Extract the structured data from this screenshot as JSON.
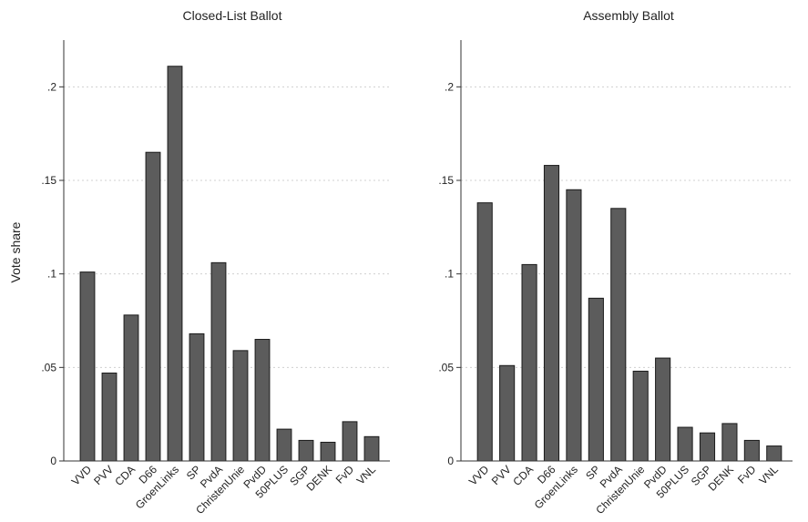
{
  "y_axis_label": "Vote share",
  "chart_data": [
    {
      "type": "bar",
      "title": "Closed-List Ballot",
      "xlabel": "",
      "ylabel": "Vote share",
      "ylim": [
        0,
        0.225
      ],
      "yticks": [
        0,
        0.05,
        0.1,
        0.15,
        0.2
      ],
      "ytick_labels": [
        "0",
        ".05",
        ".1",
        ".15",
        ".2"
      ],
      "grid": true,
      "categories": [
        "VVD",
        "PVV",
        "CDA",
        "D66",
        "GroenLinks",
        "SP",
        "PvdA",
        "ChristenUnie",
        "PvdD",
        "50PLUS",
        "SGP",
        "DENK",
        "FvD",
        "VNL"
      ],
      "values": [
        0.101,
        0.047,
        0.078,
        0.165,
        0.211,
        0.068,
        0.106,
        0.059,
        0.065,
        0.017,
        0.011,
        0.01,
        0.021,
        0.013
      ]
    },
    {
      "type": "bar",
      "title": "Assembly Ballot",
      "xlabel": "",
      "ylabel": "",
      "ylim": [
        0,
        0.225
      ],
      "yticks": [
        0,
        0.05,
        0.1,
        0.15,
        0.2
      ],
      "ytick_labels": [
        "0",
        ".05",
        ".1",
        ".15",
        ".2"
      ],
      "grid": true,
      "categories": [
        "VVD",
        "PVV",
        "CDA",
        "D66",
        "GroenLinks",
        "SP",
        "PvdA",
        "ChristenUnie",
        "PvdD",
        "50PLUS",
        "SGP",
        "DENK",
        "FvD",
        "VNL"
      ],
      "values": [
        0.138,
        0.051,
        0.105,
        0.158,
        0.145,
        0.087,
        0.135,
        0.048,
        0.055,
        0.018,
        0.015,
        0.02,
        0.011,
        0.008
      ]
    }
  ]
}
